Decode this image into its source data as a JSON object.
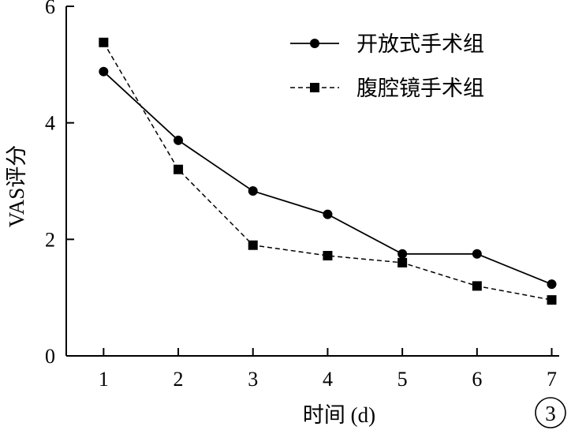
{
  "chart_data": {
    "type": "line",
    "x": [
      1,
      2,
      3,
      4,
      5,
      6,
      7
    ],
    "series": [
      {
        "name": "开放式手术组",
        "values": [
          4.88,
          3.7,
          2.83,
          2.43,
          1.75,
          1.75,
          1.23
        ],
        "marker": "circle",
        "line": "solid",
        "color": "#000000"
      },
      {
        "name": "腹腔镜手术组",
        "values": [
          5.38,
          3.2,
          1.9,
          1.72,
          1.6,
          1.2,
          0.96
        ],
        "marker": "square",
        "line": "dashed",
        "color": "#000000"
      }
    ],
    "xlabel": "时间 (d)",
    "ylabel": "VAS评分",
    "xlim": [
      0.5,
      7.1
    ],
    "ylim": [
      0,
      6
    ],
    "xticks": [
      "1",
      "2",
      "3",
      "4",
      "5",
      "6",
      "7"
    ],
    "yticks": [
      "0",
      "2",
      "4",
      "6"
    ],
    "grid": false,
    "legend_position": "top-right",
    "panel_label": "3"
  }
}
